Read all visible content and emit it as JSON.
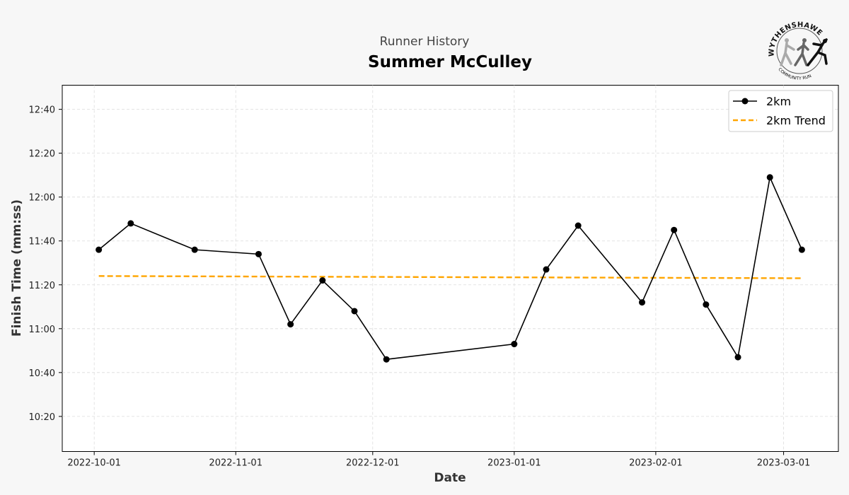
{
  "header": {
    "subtitle": "Runner History",
    "title": "Summer McCulley",
    "logo_text_top": "WYTHENSHAWE",
    "logo_text_bottom": "COMMUNITY RUN"
  },
  "chart_data": {
    "type": "line",
    "title": "Summer McCulley",
    "subtitle": "Runner History",
    "xlabel": "Date",
    "ylabel": "Finish Time (mm:ss)",
    "xlim": [
      "2022-09-24",
      "2023-03-13"
    ],
    "ylim": [
      "10:04",
      "12:51"
    ],
    "x_ticks": [
      "2022-10-01",
      "2022-11-01",
      "2022-12-01",
      "2023-01-01",
      "2023-02-01",
      "2023-03-01"
    ],
    "y_ticks": [
      "10:20",
      "10:40",
      "11:00",
      "11:20",
      "11:40",
      "12:00",
      "12:20",
      "12:40"
    ],
    "grid": true,
    "legend_placement": "top-right",
    "series": [
      {
        "name": "2km",
        "color": "#000000",
        "style": "solid-with-markers",
        "x": [
          "2022-10-02",
          "2022-10-09",
          "2022-10-23",
          "2022-11-06",
          "2022-11-13",
          "2022-11-20",
          "2022-11-27",
          "2022-12-04",
          "2023-01-01",
          "2023-01-08",
          "2023-01-15",
          "2023-01-29",
          "2023-02-05",
          "2023-02-12",
          "2023-02-19",
          "2023-02-26",
          "2023-03-05"
        ],
        "y": [
          "11:36",
          "11:48",
          "11:36",
          "11:34",
          "11:02",
          "11:22",
          "11:08",
          "10:46",
          "10:53",
          "11:27",
          "11:47",
          "11:12",
          "11:45",
          "11:11",
          "10:47",
          "12:09",
          "11:36"
        ]
      },
      {
        "name": "2km Trend",
        "color": "#FFA500",
        "style": "dashed",
        "x": [
          "2022-10-02",
          "2023-03-05"
        ],
        "y": [
          "11:24",
          "11:23"
        ]
      }
    ]
  }
}
